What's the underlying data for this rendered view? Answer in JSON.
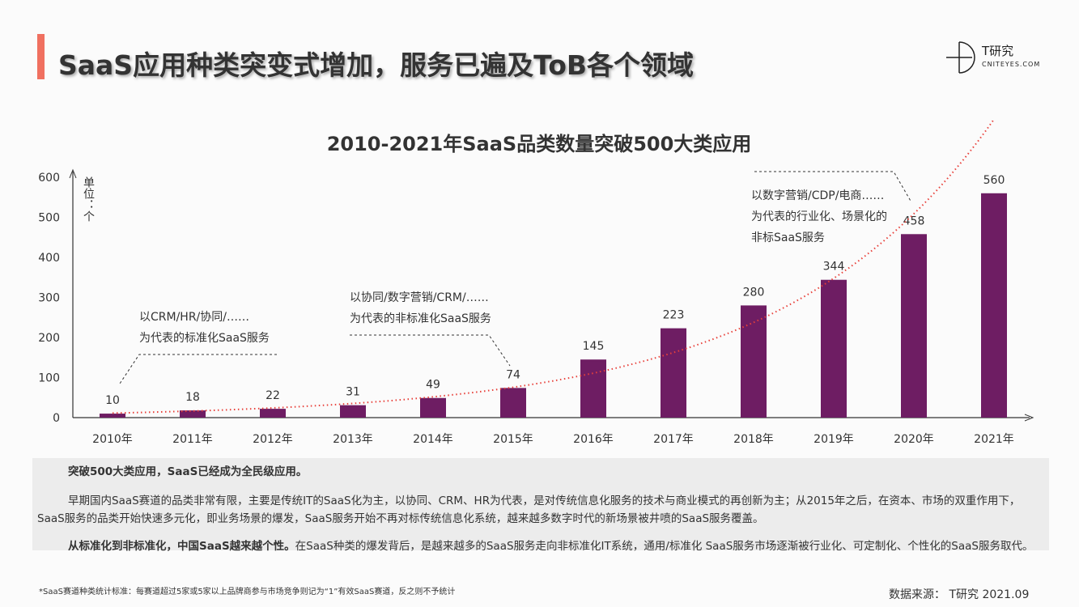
{
  "header": {
    "title": "SaaS应用种类突变式增加，服务已遍及ToB各个领域",
    "logo_name": "T研究",
    "logo_site": "CNITEYES.COM"
  },
  "chart_data": {
    "type": "bar",
    "title": "2010-2021年SaaS品类数量突破500大类应用",
    "ylabel": "单位：个",
    "ylim": [
      0,
      600
    ],
    "yticks": [
      "0",
      "100",
      "200",
      "300",
      "400",
      "500",
      "600"
    ],
    "categories": [
      "2010年",
      "2011年",
      "2012年",
      "2013年",
      "2014年",
      "2015年",
      "2016年",
      "2017年",
      "2018年",
      "2019年",
      "2020年",
      "2021年"
    ],
    "values": [
      10,
      18,
      22,
      31,
      49,
      74,
      145,
      223,
      280,
      344,
      458,
      560
    ],
    "bar_color": "#6e1d63",
    "trendline": {
      "style": "dotted",
      "color": "#e8403a",
      "type": "exponential"
    },
    "annotations": [
      {
        "lines": [
          "以CRM/HR/协同/……",
          "为代表的标准化SaaS服务"
        ]
      },
      {
        "lines": [
          "以协同/数字营销/CRM/……",
          "为代表的非标准化SaaS服务"
        ]
      },
      {
        "lines": [
          "以数字营销/CDP/电商……",
          "为代表的行业化、场景化的",
          "非标SaaS服务"
        ]
      }
    ]
  },
  "summary": {
    "p1": "突破500大类应用，SaaS已经成为全民级应用。",
    "p2": "早期国内SaaS赛道的品类非常有限，主要是传统IT的SaaS化为主，以协同、CRM、HR为代表，是对传统信息化服务的技术与商业模式的再创新为主；从2015年之后，在资本、市场的双重作用下，SaaS服务的品类开始快速多元化，即业务场景的爆发，SaaS服务开始不再对标传统信息化系统，越来越多数字时代的新场景被井喷的SaaS服务覆盖。",
    "p3_bold": "从标准化到非标准化，中国SaaS越来越个性。",
    "p3": "在SaaS种类的爆发背后，是越来越多的SaaS服务走向非标准化IT系统，通用/标准化 SaaS服务市场逐渐被行业化、可定制化、个性化的SaaS服务取代。"
  },
  "footer": {
    "note": "*SaaS赛道种类统计标准：每赛道超过5家或5家以上品牌商参与市场竞争则记为“1”有效SaaS赛道，反之则不予统计",
    "source": "数据来源： T研究 2021.09"
  }
}
